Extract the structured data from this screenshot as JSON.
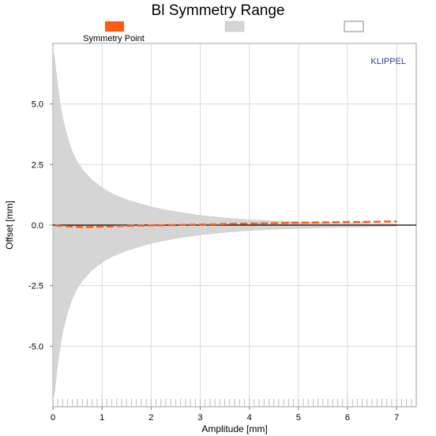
{
  "chart_data": {
    "type": "line",
    "title": "Bl Symmetry Range",
    "xlabel": "Amplitude [mm]",
    "ylabel": "Offset [mm]",
    "xlim": [
      0,
      7.4
    ],
    "ylim": [
      -7.5,
      7.5
    ],
    "x_ticks": [
      0,
      1,
      2,
      3,
      4,
      5,
      6,
      7
    ],
    "x_tick_labels": [
      "0",
      "1",
      "2",
      "3",
      "4",
      "5",
      "6",
      "7"
    ],
    "y_ticks": [
      5.0,
      2.5,
      0.0,
      -2.5,
      -5.0
    ],
    "y_tick_labels": [
      "5.0",
      "2.5",
      "0.0",
      "-2.5",
      "-5.0"
    ],
    "grid": true,
    "legend": [
      {
        "name": "Symmetry Point",
        "color": "#ff5a14"
      },
      {
        "name": "",
        "color": "#d5d5d5"
      },
      {
        "name": "",
        "color": "#ffffff"
      }
    ],
    "legend_position": "top",
    "brand_label": "KLIPPEL",
    "brand_color": "#2f3f9f",
    "symmetry_point_color": "#ff5a14",
    "range_band_color": "#d5d5d5",
    "range_band": {
      "x": [
        0.02,
        0.05,
        0.1,
        0.15,
        0.2,
        0.3,
        0.4,
        0.5,
        0.6,
        0.8,
        1.0,
        1.2,
        1.5,
        2.0,
        2.5,
        3.0,
        3.5,
        4.0,
        4.5,
        5.0,
        5.5,
        6.0,
        6.5,
        7.0
      ],
      "upper": [
        7.1,
        6.6,
        5.7,
        5.0,
        4.4,
        3.6,
        3.0,
        2.6,
        2.3,
        1.85,
        1.55,
        1.3,
        1.05,
        0.75,
        0.55,
        0.4,
        0.3,
        0.22,
        0.17,
        0.14,
        0.11,
        0.09,
        0.07,
        0.05
      ],
      "lower": [
        -7.1,
        -6.6,
        -5.7,
        -5.0,
        -4.4,
        -3.6,
        -3.0,
        -2.6,
        -2.3,
        -1.85,
        -1.55,
        -1.3,
        -1.05,
        -0.75,
        -0.55,
        -0.4,
        -0.3,
        -0.22,
        -0.17,
        -0.14,
        -0.11,
        -0.09,
        -0.07,
        -0.05
      ]
    },
    "series": [
      {
        "name": "Symmetry Point",
        "x": [
          0.05,
          0.3,
          0.6,
          0.9,
          1.2,
          1.5,
          1.8,
          2.1,
          2.4,
          2.7,
          3.0,
          3.3,
          3.6,
          3.9,
          4.2,
          4.5,
          4.8,
          5.1,
          5.4,
          5.7,
          6.0,
          6.3,
          6.6,
          7.0
        ],
        "y": [
          -0.02,
          -0.05,
          -0.08,
          -0.07,
          -0.05,
          -0.03,
          -0.02,
          -0.01,
          0.0,
          0.01,
          0.02,
          0.03,
          0.05,
          0.06,
          0.07,
          0.08,
          0.09,
          0.1,
          0.11,
          0.12,
          0.13,
          0.13,
          0.14,
          0.15
        ]
      }
    ]
  }
}
